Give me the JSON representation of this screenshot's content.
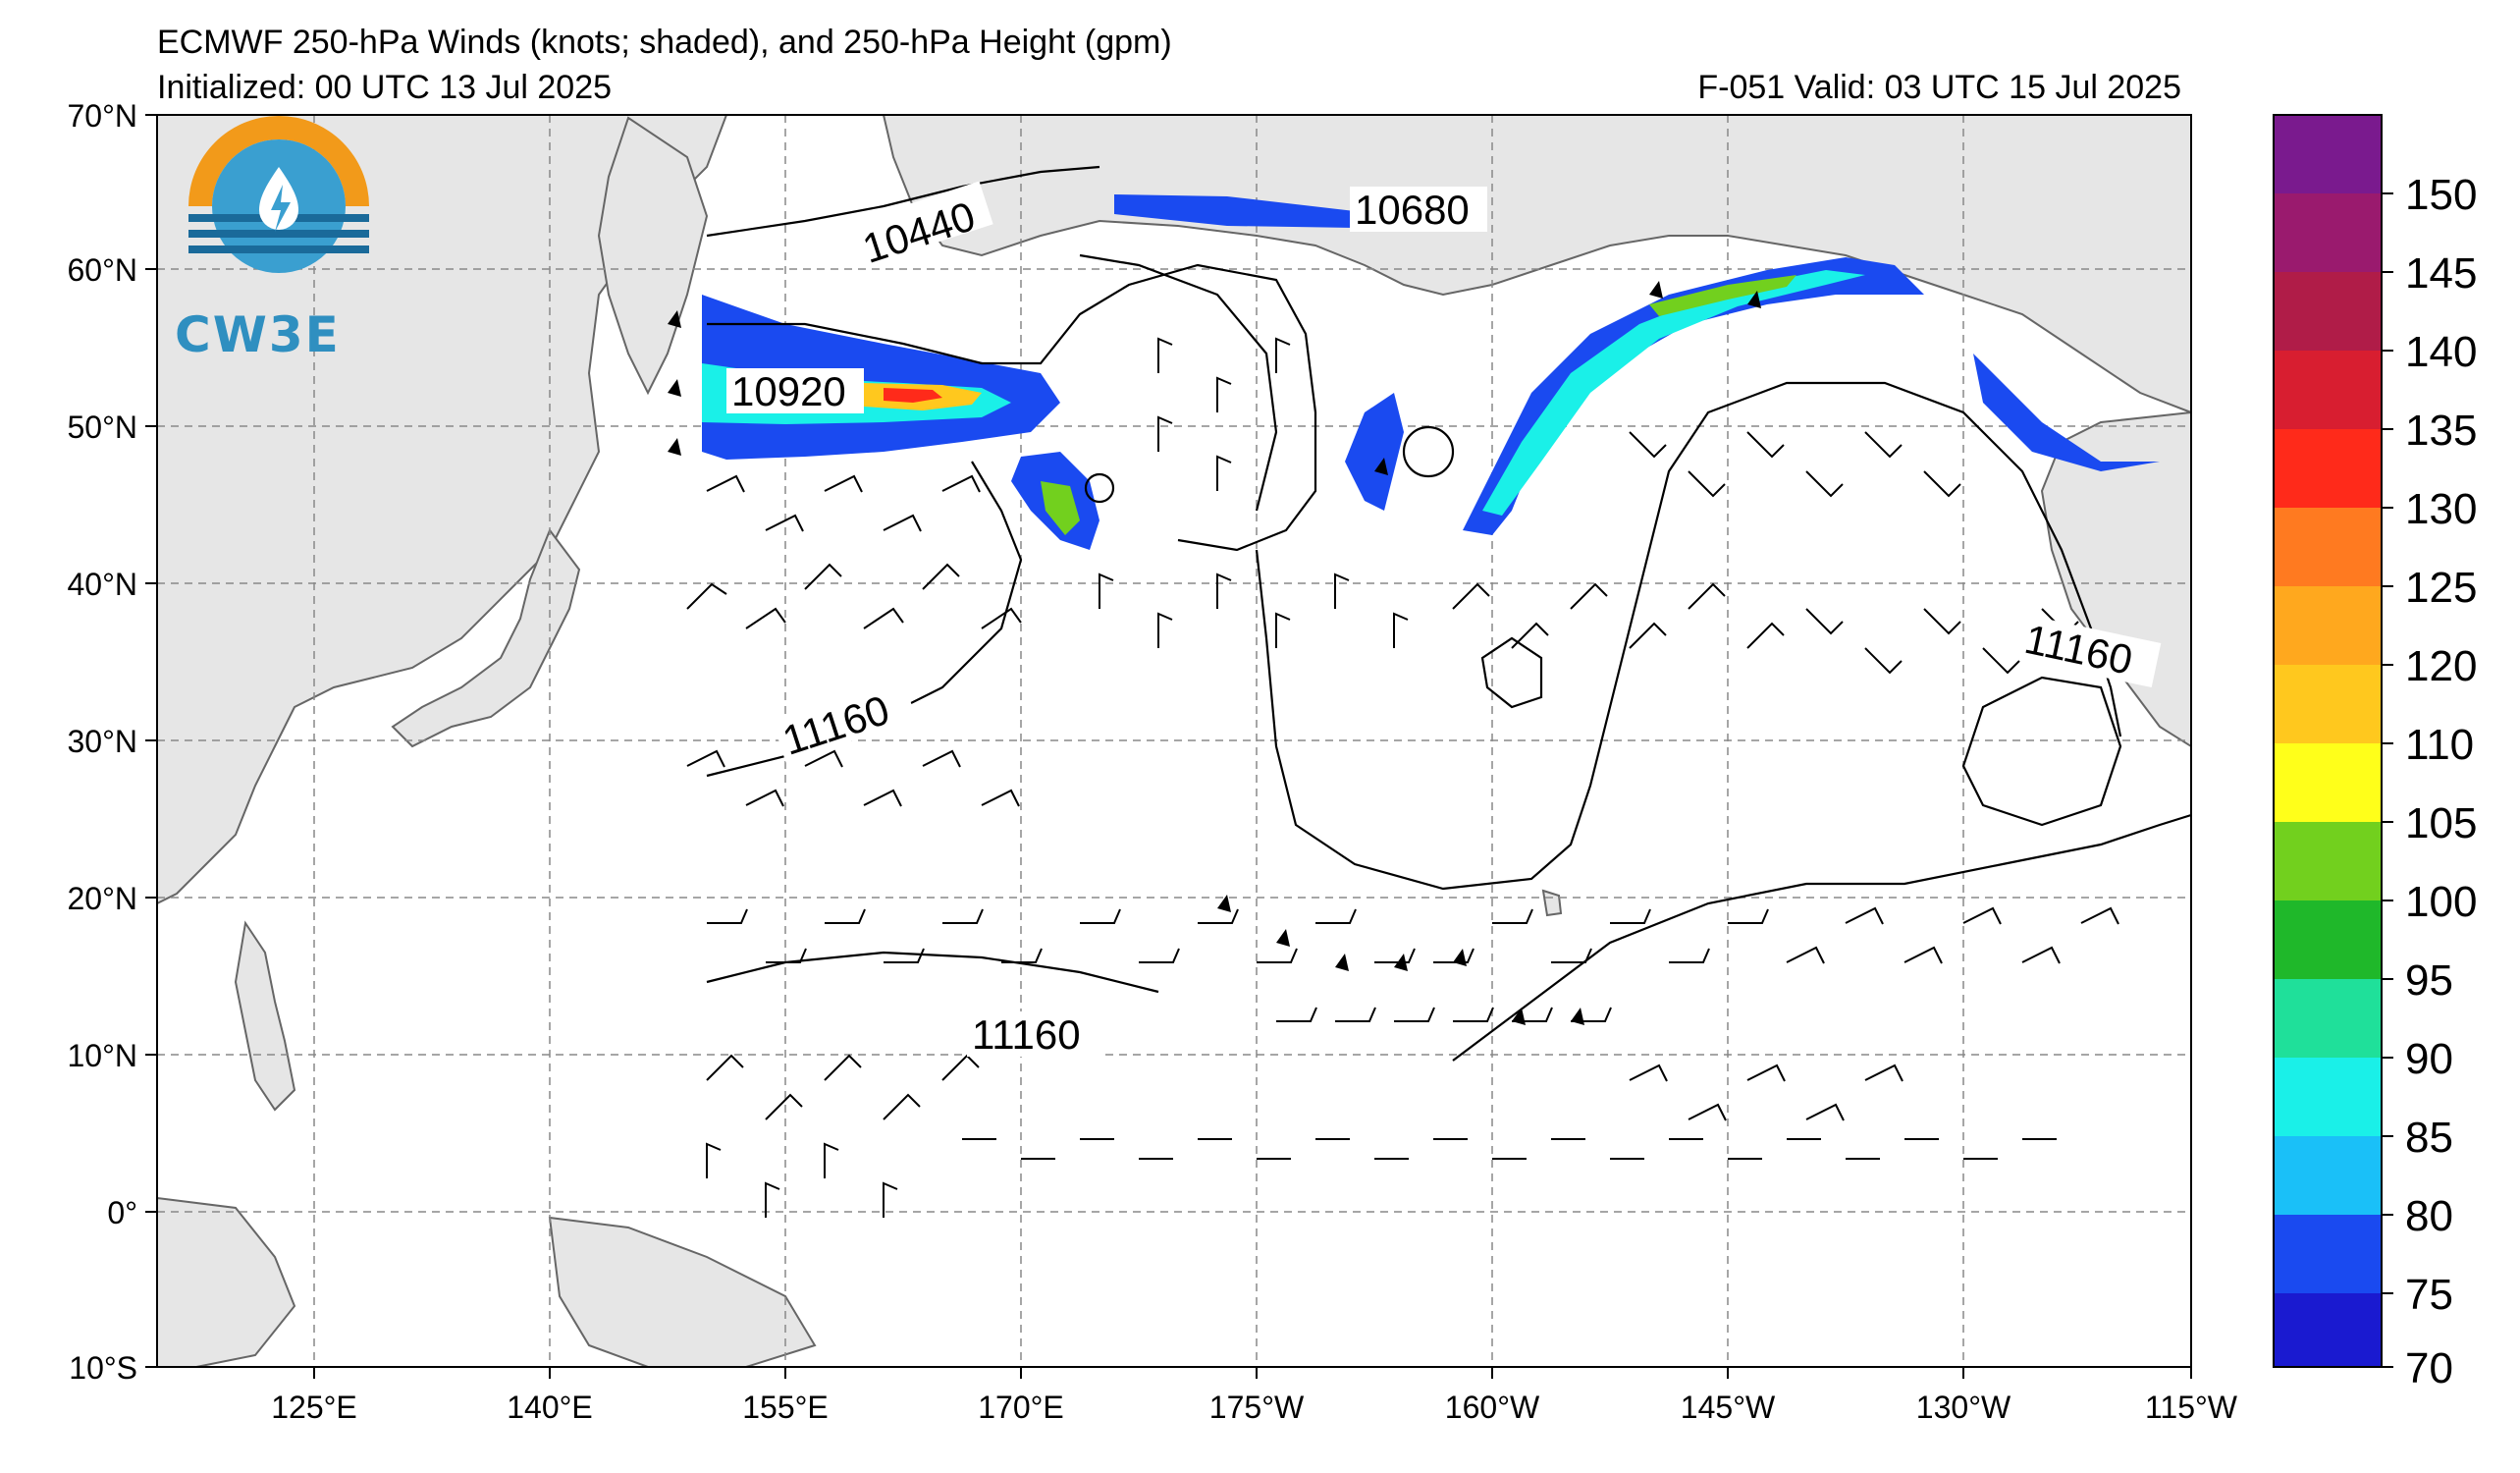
{
  "header": {
    "title": "ECMWF 250-hPa Winds (knots; shaded), and 250-hPa Height (gpm)",
    "initialized": "Initialized: 00 UTC 13 Jul 2025",
    "valid": "F-051  Valid: 03 UTC 15 Jul 2025"
  },
  "logo": {
    "text": "CW3E"
  },
  "map": {
    "lat_labels": [
      "70°N",
      "60°N",
      "50°N",
      "40°N",
      "30°N",
      "20°N",
      "10°N",
      "0°",
      "10°S"
    ],
    "lon_labels": [
      "125°E",
      "140°E",
      "155°E",
      "170°E",
      "175°W",
      "160°W",
      "145°W",
      "130°W",
      "115°W"
    ],
    "contour_labels": [
      "10440",
      "10680",
      "10920",
      "11160",
      "11160",
      "11160"
    ],
    "land_color": "#e6e6e6",
    "ocean_color": "#ffffff"
  },
  "colorbar": {
    "ticks": [
      "150",
      "145",
      "140",
      "135",
      "130",
      "125",
      "120",
      "110",
      "105",
      "100",
      "95",
      "90",
      "85",
      "80",
      "75",
      "70"
    ],
    "colors": [
      "#7a1a8e",
      "#9a1a6e",
      "#b01c48",
      "#d81e30",
      "#ff2a1a",
      "#ff7a20",
      "#ffa81e",
      "#ffc81e",
      "#ffff1a",
      "#72d01e",
      "#1fb82a",
      "#1fe09a",
      "#1af0e8",
      "#1ac0f8",
      "#1a4af0",
      "#1a1ad0"
    ]
  }
}
